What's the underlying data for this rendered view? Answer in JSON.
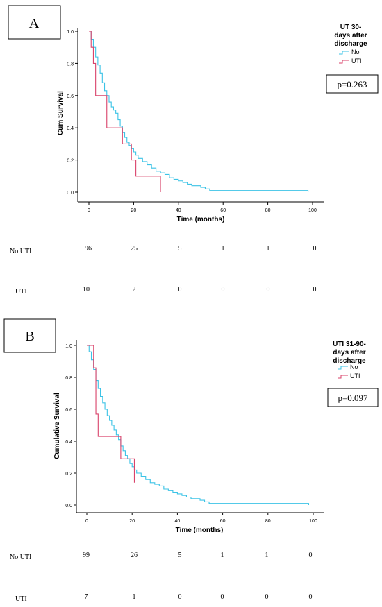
{
  "panels": [
    {
      "label": "A",
      "pvalue": "p=0.263",
      "legend": {
        "title_lines": [
          "UT 30-",
          "days after",
          "discharge"
        ],
        "items": [
          "No",
          "UTI"
        ]
      },
      "risk_table": {
        "rows": [
          {
            "label": "No UTI",
            "values": [
              "96",
              "25",
              "5",
              "1",
              "1",
              "0"
            ]
          },
          {
            "label": "UTI",
            "values": [
              "10",
              "2",
              "0",
              "0",
              "0",
              "0"
            ]
          }
        ]
      }
    },
    {
      "label": "B",
      "pvalue": "p=0.097",
      "legend": {
        "title_lines": [
          "UTI 31-90-",
          "days after",
          "discharge"
        ],
        "items": [
          "No",
          "UTI"
        ]
      },
      "risk_table": {
        "rows": [
          {
            "label": "No UTI",
            "values": [
              "99",
              "26",
              "5",
              "1",
              "1",
              "0"
            ]
          },
          {
            "label": "UTI",
            "values": [
              "7",
              "1",
              "0",
              "0",
              "0",
              "0"
            ]
          }
        ]
      }
    }
  ],
  "chart_data": [
    {
      "type": "line",
      "step": true,
      "xlabel": "Time (months)",
      "ylabel": "Cum Survival",
      "xlim": [
        0,
        100
      ],
      "ylim": [
        0,
        1
      ],
      "xticks": [
        "0",
        "20",
        "40",
        "60",
        "80",
        "100"
      ],
      "yticks": [
        "0.0",
        "0.2",
        "0.4",
        "0.6",
        "0.8",
        "1.0"
      ],
      "series": [
        {
          "name": "No",
          "color": "#3cc3e6",
          "x": [
            0,
            1,
            2,
            3,
            4,
            5,
            6,
            7,
            8,
            9,
            10,
            11,
            12,
            13,
            14,
            15,
            16,
            17,
            18,
            19,
            20,
            21,
            22,
            24,
            26,
            28,
            30,
            32,
            34,
            36,
            38,
            40,
            42,
            44,
            46,
            48,
            50,
            52,
            54,
            98
          ],
          "y": [
            1.0,
            0.95,
            0.9,
            0.84,
            0.79,
            0.74,
            0.68,
            0.63,
            0.6,
            0.56,
            0.53,
            0.51,
            0.49,
            0.45,
            0.41,
            0.37,
            0.34,
            0.31,
            0.29,
            0.27,
            0.25,
            0.23,
            0.21,
            0.19,
            0.17,
            0.15,
            0.13,
            0.12,
            0.11,
            0.09,
            0.08,
            0.07,
            0.06,
            0.05,
            0.04,
            0.04,
            0.03,
            0.02,
            0.01,
            0.0
          ]
        },
        {
          "name": "UTI",
          "color": "#d9426a",
          "x": [
            0,
            1,
            2,
            3,
            8,
            13,
            15,
            17,
            19,
            21,
            32
          ],
          "y": [
            1.0,
            0.9,
            0.8,
            0.6,
            0.4,
            0.4,
            0.3,
            0.3,
            0.2,
            0.1,
            0.0
          ]
        }
      ]
    },
    {
      "type": "line",
      "step": true,
      "xlabel": "Time (months)",
      "ylabel": "Cumulative Survival",
      "xlim": [
        0,
        100
      ],
      "ylim": [
        0,
        1
      ],
      "xticks": [
        "0",
        "20",
        "40",
        "60",
        "80",
        "100"
      ],
      "yticks": [
        "0.0",
        "0.2",
        "0.4",
        "0.6",
        "0.8",
        "1.0"
      ],
      "series": [
        {
          "name": "No",
          "color": "#3cc3e6",
          "x": [
            0,
            1,
            2,
            3,
            4,
            5,
            6,
            7,
            8,
            9,
            10,
            11,
            12,
            13,
            14,
            15,
            16,
            17,
            18,
            19,
            20,
            21,
            22,
            24,
            26,
            28,
            30,
            32,
            34,
            36,
            38,
            40,
            42,
            44,
            46,
            48,
            50,
            52,
            54,
            98
          ],
          "y": [
            1.0,
            0.96,
            0.91,
            0.85,
            0.78,
            0.73,
            0.68,
            0.64,
            0.6,
            0.56,
            0.53,
            0.5,
            0.47,
            0.44,
            0.41,
            0.37,
            0.34,
            0.31,
            0.29,
            0.26,
            0.24,
            0.22,
            0.2,
            0.18,
            0.16,
            0.14,
            0.13,
            0.12,
            0.1,
            0.09,
            0.08,
            0.07,
            0.06,
            0.05,
            0.04,
            0.04,
            0.03,
            0.02,
            0.01,
            0.0
          ]
        },
        {
          "name": "UTI",
          "color": "#d9426a",
          "x": [
            0,
            2,
            3,
            4,
            5,
            15,
            21
          ],
          "y": [
            1.0,
            1.0,
            0.86,
            0.57,
            0.43,
            0.29,
            0.14
          ]
        }
      ]
    }
  ]
}
